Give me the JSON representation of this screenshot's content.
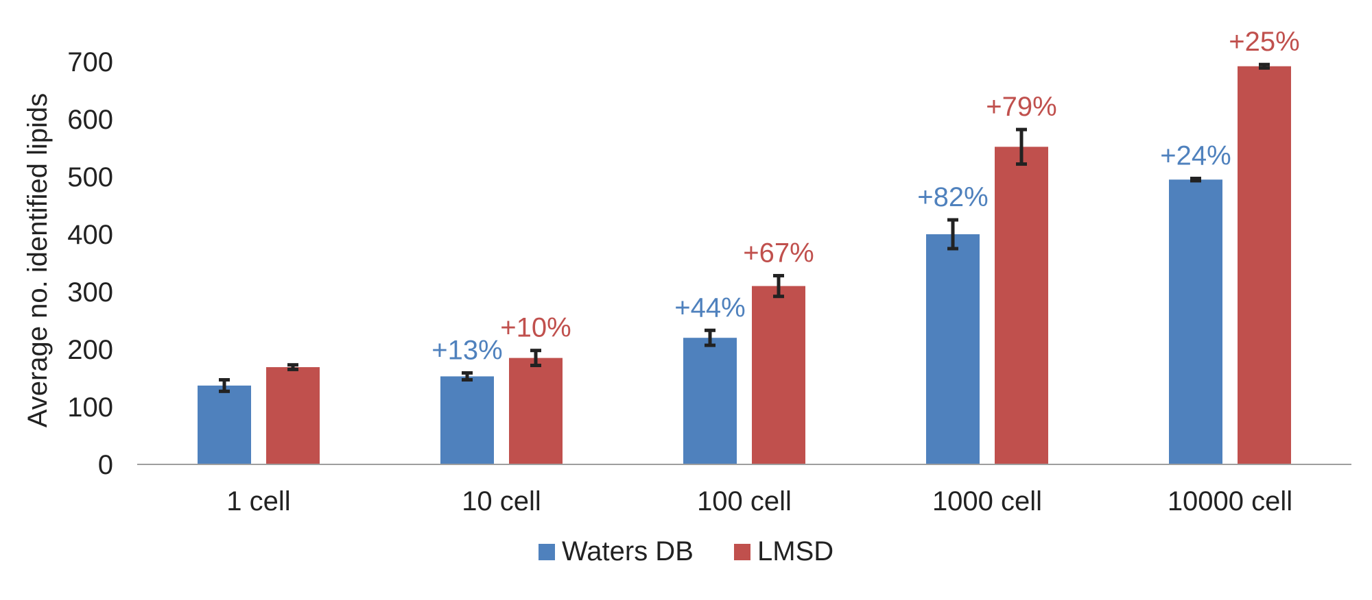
{
  "chart_data": {
    "type": "bar",
    "title": "",
    "xlabel": "",
    "ylabel": "Average no. identified lipids",
    "ylim": [
      0,
      700
    ],
    "yticks": [
      0,
      100,
      200,
      300,
      400,
      500,
      600,
      700
    ],
    "grid": false,
    "legend_position": "bottom-center",
    "categories": [
      "1 cell",
      "10 cell",
      "100 cell",
      "1000 cell",
      "10000 cell"
    ],
    "series": [
      {
        "name": "Waters DB",
        "color": "#4F81BD",
        "values": [
          137,
          153,
          220,
          400,
          495
        ],
        "errors": [
          10,
          6,
          13,
          25,
          2
        ],
        "labels": [
          "",
          "+13%",
          "+44%",
          "+82%",
          "+24%"
        ]
      },
      {
        "name": "LMSD",
        "color": "#C0504D",
        "values": [
          169,
          185,
          310,
          552,
          692
        ],
        "errors": [
          4,
          13,
          18,
          30,
          3
        ],
        "labels": [
          "",
          "+10%",
          "+67%",
          "+79%",
          "+25%"
        ]
      }
    ]
  }
}
